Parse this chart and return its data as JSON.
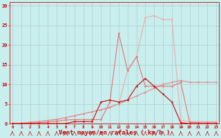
{
  "x": [
    0,
    1,
    2,
    3,
    4,
    5,
    6,
    7,
    8,
    9,
    10,
    11,
    12,
    13,
    14,
    15,
    16,
    17,
    18,
    19,
    20,
    21,
    22,
    23
  ],
  "line_dark": [
    0.0,
    0.0,
    0.0,
    0.0,
    0.0,
    0.0,
    0.0,
    0.5,
    0.5,
    0.5,
    5.5,
    6.0,
    5.5,
    6.0,
    9.5,
    11.5,
    9.5,
    7.5,
    5.5,
    0.2,
    0.0,
    0.0,
    0.0,
    0.0
  ],
  "line_med1": [
    0.0,
    0.0,
    0.1,
    0.2,
    0.4,
    0.6,
    0.9,
    1.0,
    1.0,
    1.0,
    1.0,
    5.5,
    23.0,
    13.5,
    17.0,
    9.5,
    9.5,
    9.5,
    9.5,
    10.5,
    0.3,
    0.2,
    0.2,
    0.2
  ],
  "line_light": [
    0.0,
    0.0,
    0.3,
    0.5,
    0.8,
    1.0,
    1.5,
    2.0,
    2.5,
    3.0,
    3.5,
    4.0,
    5.0,
    13.5,
    17.0,
    27.0,
    27.5,
    26.5,
    26.5,
    0.8,
    0.5,
    0.5,
    0.5,
    0.5
  ],
  "line_linear": [
    0.0,
    0.1,
    0.3,
    0.5,
    0.8,
    1.1,
    1.5,
    2.0,
    2.5,
    3.0,
    3.5,
    4.2,
    5.0,
    6.0,
    7.0,
    8.0,
    9.0,
    10.0,
    10.5,
    11.0,
    10.5,
    10.5,
    10.5,
    10.5
  ],
  "color_dark": "#cc0000",
  "color_med1": "#e87070",
  "color_light": "#f0aaaa",
  "color_linear": "#e08888",
  "bg_color": "#c8eeee",
  "grid_color": "#b0cccc",
  "xlabel": "Vent moyen/en rafales ( km/h )",
  "yticks": [
    0,
    5,
    10,
    15,
    20,
    25,
    30
  ],
  "xlim": [
    -0.3,
    23.3
  ],
  "ylim": [
    0,
    31
  ]
}
